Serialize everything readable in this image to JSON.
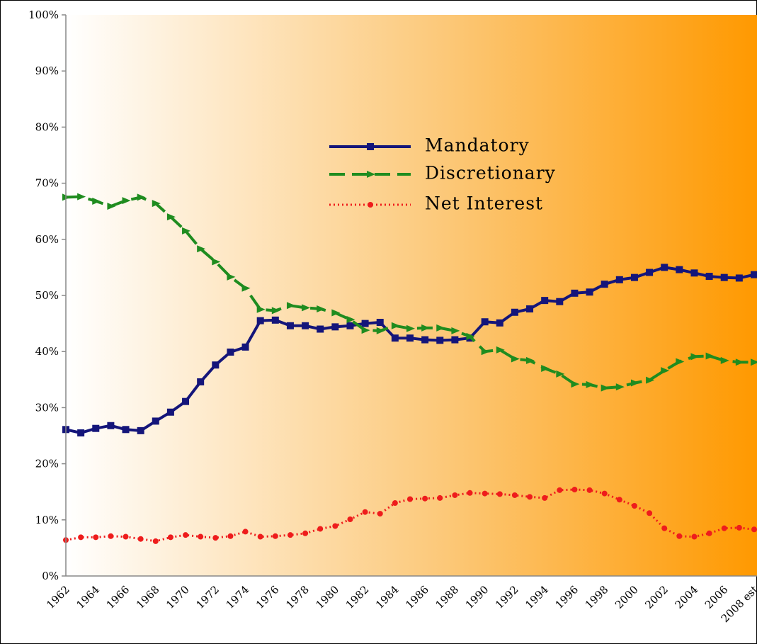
{
  "chart_data": {
    "type": "line",
    "categories": [
      "1962",
      null,
      "1964",
      null,
      "1966",
      null,
      "1968",
      null,
      "1970",
      null,
      "1972",
      null,
      "1974",
      null,
      "1976",
      null,
      "1978",
      null,
      "1980",
      null,
      "1982",
      null,
      "1984",
      null,
      "1986",
      null,
      "1988",
      null,
      "1990",
      null,
      "1992",
      null,
      "1994",
      null,
      "1996",
      null,
      "1998",
      null,
      "2000",
      null,
      "2002",
      null,
      "2004",
      null,
      "2006",
      null,
      "2008 est"
    ],
    "series": [
      {
        "name": "Mandatory",
        "color": "#14157a",
        "marker": "square",
        "line": "solid",
        "values": [
          26.1,
          25.5,
          26.3,
          26.8,
          26.1,
          25.9,
          27.6,
          29.2,
          31.1,
          34.6,
          37.6,
          39.9,
          40.8,
          45.5,
          45.6,
          44.6,
          44.6,
          44.0,
          44.4,
          44.6,
          45.0,
          45.2,
          42.4,
          42.4,
          42.1,
          42.0,
          42.1,
          42.4,
          45.3,
          45.1,
          47.0,
          47.6,
          49.1,
          48.9,
          50.4,
          50.6,
          52.0,
          52.8,
          53.2,
          54.1,
          55.0,
          54.6,
          54.0,
          53.4,
          53.2,
          53.1,
          53.7
        ]
      },
      {
        "name": "Discretionary",
        "color": "#1f8c1f",
        "marker": "triangle",
        "line": "dashed",
        "values": [
          67.5,
          67.6,
          66.8,
          65.9,
          66.9,
          67.5,
          66.4,
          64.0,
          61.5,
          58.3,
          56.0,
          53.3,
          51.3,
          47.5,
          47.3,
          48.2,
          47.8,
          47.6,
          46.9,
          45.7,
          43.8,
          43.7,
          44.6,
          44.1,
          44.2,
          44.2,
          43.7,
          42.7,
          40.0,
          40.3,
          38.7,
          38.4,
          37.0,
          36.0,
          34.2,
          34.1,
          33.5,
          33.7,
          34.4,
          34.9,
          36.6,
          38.2,
          39.1,
          39.2,
          38.4,
          38.1,
          38.1
        ]
      },
      {
        "name": "Net Interest",
        "color": "#ee1c1c",
        "marker": "circle",
        "line": "dotted",
        "values": [
          6.4,
          6.9,
          6.9,
          7.1,
          7.0,
          6.6,
          6.2,
          6.9,
          7.3,
          7.0,
          6.8,
          7.1,
          7.9,
          7.0,
          7.1,
          7.3,
          7.6,
          8.4,
          8.9,
          10.1,
          11.4,
          11.1,
          13.0,
          13.7,
          13.8,
          13.9,
          14.4,
          14.8,
          14.7,
          14.6,
          14.4,
          14.1,
          13.9,
          15.3,
          15.4,
          15.3,
          14.7,
          13.6,
          12.5,
          11.2,
          8.5,
          7.1,
          7.0,
          7.6,
          8.5,
          8.6,
          8.3
        ]
      }
    ],
    "ylim": [
      0,
      100
    ],
    "yticks": [
      {
        "value": 0,
        "label": "0%"
      },
      {
        "value": 10,
        "label": "10%"
      },
      {
        "value": 20,
        "label": "20%"
      },
      {
        "value": 30,
        "label": "30%"
      },
      {
        "value": 40,
        "label": "40%"
      },
      {
        "value": 50,
        "label": "50%"
      },
      {
        "value": 60,
        "label": "60%"
      },
      {
        "value": 70,
        "label": "70%"
      },
      {
        "value": 80,
        "label": "80%"
      },
      {
        "value": 90,
        "label": "90%"
      },
      {
        "value": 100,
        "label": "100%"
      }
    ],
    "legend": "upper center"
  }
}
